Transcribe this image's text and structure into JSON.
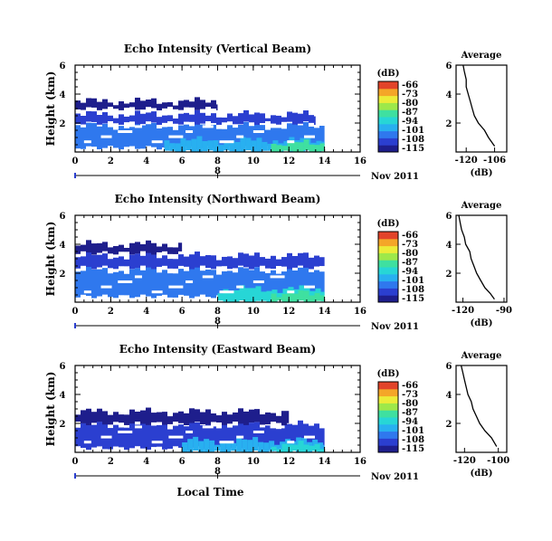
{
  "figure": {
    "xlabel": "Local Time",
    "date_label": "Nov 2011",
    "colorbar_unit": "(dB)",
    "colorbar_ticks": [
      "-66",
      "-73",
      "-80",
      "-87",
      "-94",
      "-101",
      "-108",
      "-115"
    ],
    "profile_title": "Average",
    "profile_xlabel": "(dB)",
    "colors": {
      "scale": [
        "#1e1e8c",
        "#2b3fd0",
        "#2f78ee",
        "#28b0f0",
        "#27d6d6",
        "#3fe0a0",
        "#9ee84a",
        "#ecec38",
        "#f4a628",
        "#e2442a"
      ]
    }
  },
  "chart_data": [
    {
      "type": "heatmap",
      "title": "Echo Intensity (Vertical Beam)",
      "ylabel": "Height (km)",
      "xlabel": "",
      "xlim": [
        0,
        16
      ],
      "ylim": [
        0,
        6
      ],
      "xticks": [
        "0",
        "2",
        "4",
        "6",
        "8",
        "10",
        "12",
        "14",
        "16"
      ],
      "yticks": [
        "2",
        "4",
        "6"
      ],
      "secondary_tick": "8",
      "clim": [
        -115,
        -66
      ],
      "echo_layers": [
        {
          "t": [
            0,
            14
          ],
          "h": [
            0.3,
            1.8
          ],
          "dB": -104
        },
        {
          "t": [
            5,
            14
          ],
          "h": [
            0,
            0.8
          ],
          "dB": -96
        },
        {
          "t": [
            11,
            14
          ],
          "h": [
            0,
            0.6
          ],
          "dB": -90
        },
        {
          "t": [
            0,
            13.5
          ],
          "h": [
            2.0,
            2.6
          ],
          "dB": -108
        },
        {
          "t": [
            0,
            8
          ],
          "h": [
            3.0,
            3.5
          ],
          "dB": -112
        }
      ],
      "profile": {
        "xlim": [
          -125,
          -100
        ],
        "xticks": [
          "-120",
          "-106"
        ],
        "yticks": [
          "2",
          "4",
          "6"
        ],
        "x": [
          -121.5,
          -121,
          -120,
          -120,
          -119,
          -118,
          -117,
          -116,
          -114,
          -111,
          -109,
          -106
        ],
        "y": [
          6,
          5.6,
          5,
          4.5,
          4,
          3.5,
          3,
          2.5,
          2,
          1.5,
          1,
          0.4
        ]
      }
    },
    {
      "type": "heatmap",
      "title": "Echo Intensity (Northward Beam)",
      "ylabel": "Height (km)",
      "xlabel": "",
      "xlim": [
        0,
        16
      ],
      "ylim": [
        0,
        6
      ],
      "xticks": [
        "0",
        "2",
        "4",
        "6",
        "8",
        "10",
        "12",
        "14",
        "16"
      ],
      "yticks": [
        "2",
        "4",
        "6"
      ],
      "secondary_tick": "8",
      "clim": [
        -115,
        -66
      ],
      "echo_layers": [
        {
          "t": [
            0,
            14
          ],
          "h": [
            0.4,
            2.2
          ],
          "dB": -104
        },
        {
          "t": [
            8,
            14
          ],
          "h": [
            0,
            0.9
          ],
          "dB": -94
        },
        {
          "t": [
            11,
            14
          ],
          "h": [
            0,
            0.6
          ],
          "dB": -88
        },
        {
          "t": [
            0,
            14
          ],
          "h": [
            2.4,
            3.2
          ],
          "dB": -110
        },
        {
          "t": [
            0,
            6
          ],
          "h": [
            3.4,
            4.0
          ],
          "dB": -113
        }
      ],
      "profile": {
        "xlim": [
          -125,
          -88
        ],
        "xticks": [
          "-120",
          "-90"
        ],
        "yticks": [
          "2",
          "4",
          "6"
        ],
        "x": [
          -123,
          -122,
          -121,
          -119,
          -118,
          -115,
          -114,
          -112,
          -110,
          -107,
          -104,
          -100,
          -97
        ],
        "y": [
          6,
          5.5,
          5,
          4.5,
          4,
          3.5,
          3,
          2.5,
          2,
          1.5,
          1,
          0.6,
          0.2
        ]
      }
    },
    {
      "type": "heatmap",
      "title": "Echo Intensity (Eastward Beam)",
      "ylabel": "Height (km)",
      "xlabel": "Local Time",
      "xlim": [
        0,
        16
      ],
      "ylim": [
        0,
        6
      ],
      "xticks": [
        "0",
        "2",
        "4",
        "6",
        "8",
        "10",
        "12",
        "14",
        "16"
      ],
      "yticks": [
        "2",
        "4",
        "6"
      ],
      "secondary_tick": "8",
      "clim": [
        -115,
        -66
      ],
      "echo_layers": [
        {
          "t": [
            0,
            14
          ],
          "h": [
            0.3,
            1.9
          ],
          "dB": -106
        },
        {
          "t": [
            6,
            14
          ],
          "h": [
            0,
            0.8
          ],
          "dB": -98
        },
        {
          "t": [
            11,
            14
          ],
          "h": [
            0,
            0.5
          ],
          "dB": -92
        },
        {
          "t": [
            0,
            12
          ],
          "h": [
            2.0,
            2.8
          ],
          "dB": -111
        }
      ],
      "profile": {
        "xlim": [
          -125,
          -95
        ],
        "xticks": [
          "-120",
          "-100"
        ],
        "yticks": [
          "2",
          "4",
          "6"
        ],
        "x": [
          -122,
          -121,
          -120,
          -119,
          -118,
          -116,
          -115,
          -113,
          -111,
          -108,
          -104,
          -101
        ],
        "y": [
          6,
          5.5,
          5,
          4.5,
          4,
          3.5,
          3,
          2.5,
          2,
          1.5,
          1,
          0.4
        ]
      }
    }
  ]
}
